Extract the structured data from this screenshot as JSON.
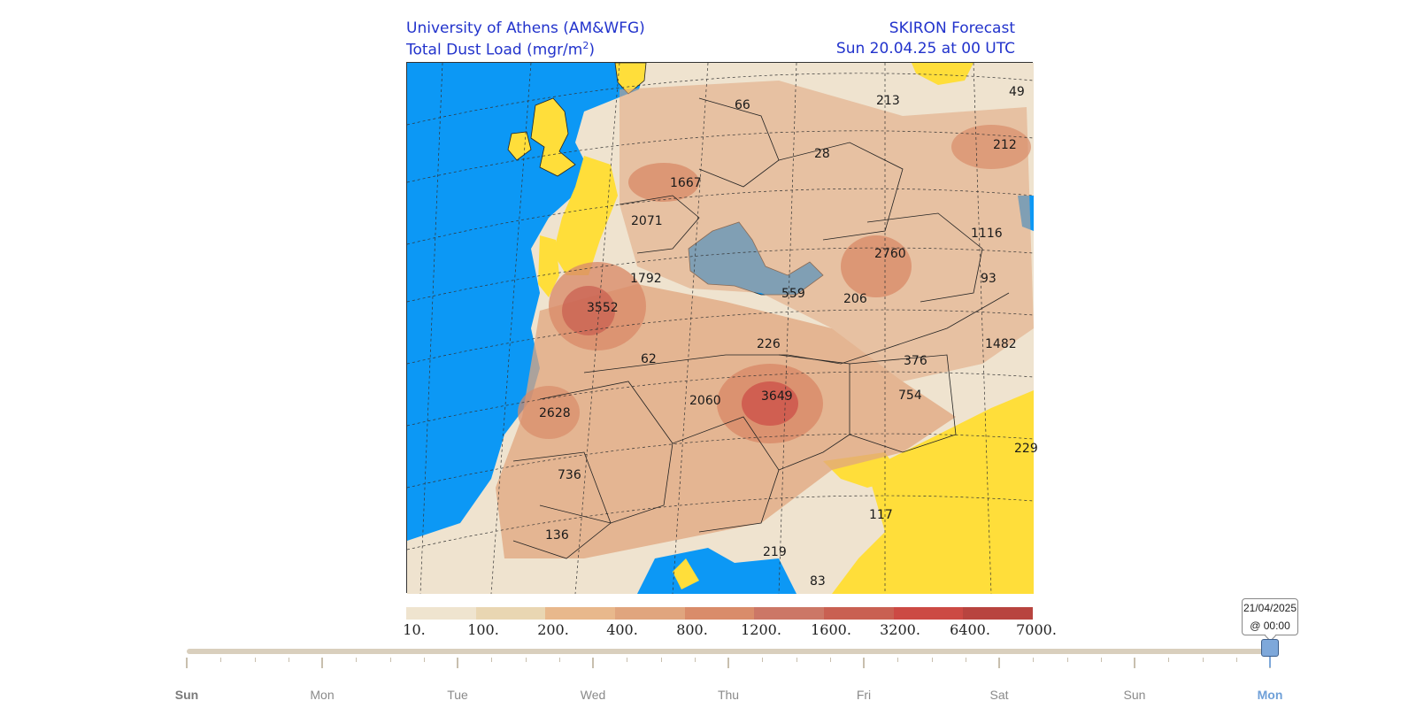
{
  "header": {
    "institution": "University of Athens (AM&WFG)",
    "product": "Total Dust Load (mgr/m",
    "product_sup": "2",
    "product_close": ")",
    "forecast_name": "SKIRON Forecast",
    "forecast_time": "Sun 20.04.25 at 00 UTC"
  },
  "map": {
    "region": "Europe, North Africa, Middle East",
    "colors": {
      "sea": "#0c98f5",
      "low_land": "#ffde3a",
      "borders": "#222222"
    },
    "labels": [
      "66",
      "213",
      "49",
      "212",
      "28",
      "1667",
      "2071",
      "1116",
      "2760",
      "1792",
      "93",
      "559",
      "206",
      "3552",
      "1482",
      "226",
      "62",
      "376",
      "2060",
      "3649",
      "754",
      "2628",
      "229",
      "736",
      "117",
      "136",
      "219",
      "83"
    ]
  },
  "legend": {
    "values": [
      "10.",
      "100.",
      "200.",
      "400.",
      "800.",
      "1200.",
      "1600.",
      "3200.",
      "6400.",
      "7000."
    ],
    "colors": [
      "#efe4cf",
      "#e9d6b2",
      "#e8b88c",
      "#e0a57e",
      "#d98c6a",
      "#cc7766",
      "#c96052",
      "#cc4a44",
      "#b8443f"
    ]
  },
  "timeline": {
    "days": [
      "Sun",
      "Mon",
      "Tue",
      "Wed",
      "Thu",
      "Fri",
      "Sat",
      "Sun",
      "Mon"
    ],
    "active_day": "Mon",
    "tooltip_date": "21/04/2025",
    "tooltip_time": "@ 00:00",
    "position": 1.0,
    "colors": {
      "track": "#d9cfbd",
      "handle": "#7ea8da",
      "active_text": "#6fa0d8"
    }
  }
}
